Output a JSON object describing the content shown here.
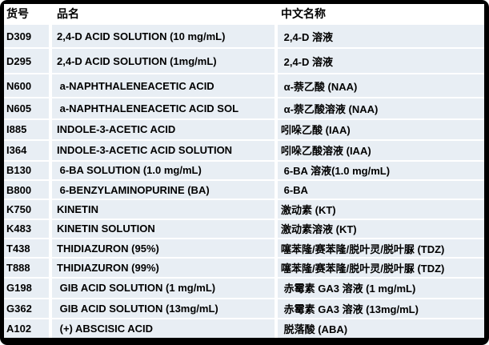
{
  "table": {
    "headers": [
      "货号",
      "品名",
      "中文名称"
    ],
    "rows": [
      {
        "code": "D309",
        "name": "2,4-D ACID SOLUTION (10 mg/mL)",
        "cn": " 2,4-D 溶液"
      },
      {
        "code": "D295",
        "name": "2,4-D ACID SOLUTION (1mg/mL)",
        "cn": " 2,4-D 溶液"
      },
      {
        "code": "N600",
        "name": " a-NAPHTHALENEACETIC ACID",
        "cn": " α-萘乙酸 (NAA)"
      },
      {
        "code": "N605",
        "name": " a-NAPHTHALENEACETIC ACID SOL",
        "cn": " α-萘乙酸溶液 (NAA)"
      },
      {
        "code": "I885",
        "name": "INDOLE-3-ACETIC ACID",
        "cn": "吲哚乙酸 (IAA)"
      },
      {
        "code": "I364",
        "name": "INDOLE-3-ACETIC ACID SOLUTION",
        "cn": "吲哚乙酸溶液 (IAA)"
      },
      {
        "code": "B130",
        "name": " 6-BA SOLUTION (1.0 mg/mL)",
        "cn": " 6-BA 溶液(1.0 mg/mL)"
      },
      {
        "code": "B800",
        "name": " 6-BENZYLAMINOPURINE (BA)",
        "cn": " 6-BA"
      },
      {
        "code": "K750",
        "name": "KINETIN",
        "cn": "激动素 (KT)"
      },
      {
        "code": "K483",
        "name": "KINETIN SOLUTION",
        "cn": "激动素溶液 (KT)"
      },
      {
        "code": "T438",
        "name": "THIDIAZURON (95%)",
        "cn": "噻苯隆/赛苯隆/脱叶灵/脱叶脲 (TDZ)"
      },
      {
        "code": "T888",
        "name": "THIDIAZURON (99%)",
        "cn": "噻苯隆/赛苯隆/脱叶灵/脱叶脲 (TDZ)"
      },
      {
        "code": "G198",
        "name": " GIB ACID SOLUTION (1 mg/mL)",
        "cn": " 赤霉素 GA3 溶液 (1 mg/mL)"
      },
      {
        "code": "G362",
        "name": " GIB ACID SOLUTION (13mg/mL)",
        "cn": " 赤霉素 GA3 溶液 (13mg/mL)"
      },
      {
        "code": "A102",
        "name": " (+) ABSCISIC ACID",
        "cn": " 脱落酸 (ABA)"
      }
    ]
  },
  "colors": {
    "frame_border": "#000000",
    "header_bg": "#FFFFFF",
    "cell_bg": "#E8EEF4",
    "separator": "#FFFFFF",
    "text": "#000000"
  }
}
